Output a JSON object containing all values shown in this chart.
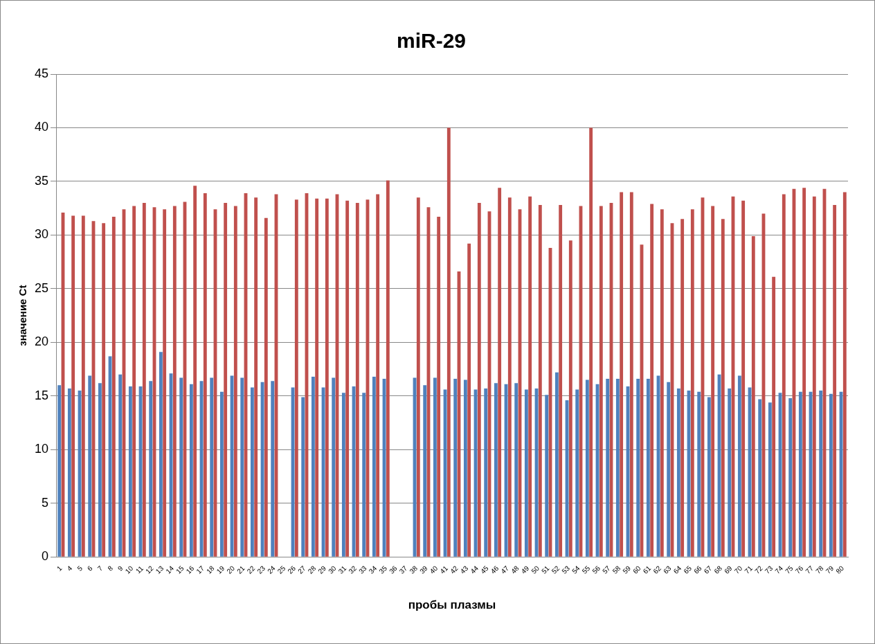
{
  "chart_data": {
    "type": "bar",
    "title": "miR-29",
    "xlabel": "пробы плазмы",
    "ylabel": "значение Ct",
    "categories": [
      "1",
      "4",
      "5",
      "6",
      "7",
      "8",
      "9",
      "10",
      "11",
      "12",
      "13",
      "14",
      "15",
      "16",
      "17",
      "18",
      "19",
      "20",
      "21",
      "22",
      "23",
      "24",
      "25",
      "26",
      "27",
      "28",
      "29",
      "30",
      "31",
      "32",
      "33",
      "34",
      "35",
      "36",
      "37",
      "38",
      "39",
      "40",
      "41",
      "42",
      "43",
      "44",
      "45",
      "46",
      "47",
      "48",
      "49",
      "50",
      "51",
      "52",
      "53",
      "54",
      "55",
      "56",
      "57",
      "58",
      "59",
      "60",
      "61",
      "62",
      "63",
      "64",
      "65",
      "66",
      "67",
      "68",
      "69",
      "70",
      "71",
      "72",
      "73",
      "74",
      "75",
      "76",
      "77",
      "78",
      "79",
      "80"
    ],
    "series": [
      {
        "color": "#4f81bd",
        "values": [
          16.0,
          15.7,
          15.5,
          16.9,
          16.2,
          18.7,
          17.0,
          15.9,
          15.9,
          16.4,
          19.1,
          17.1,
          16.7,
          16.1,
          16.4,
          16.7,
          15.4,
          16.9,
          16.7,
          15.8,
          16.3,
          16.4,
          null,
          15.8,
          14.9,
          16.8,
          15.8,
          16.7,
          15.3,
          15.9,
          15.3,
          16.8,
          16.6,
          null,
          null,
          16.7,
          16.0,
          16.7,
          15.6,
          16.6,
          16.5,
          15.6,
          15.7,
          16.2,
          16.1,
          16.2,
          15.6,
          15.7,
          15.1,
          17.2,
          14.6,
          15.6,
          16.5,
          16.1,
          16.6,
          16.6,
          15.9,
          16.6,
          16.6,
          16.9,
          16.3,
          15.7,
          15.5,
          15.4,
          14.9,
          17.0,
          15.7,
          16.9,
          15.8,
          14.7,
          14.4,
          15.3,
          14.8,
          15.4,
          15.4,
          15.5,
          15.2,
          15.4
        ]
      },
      {
        "color": "#c0504d",
        "values": [
          32.1,
          31.8,
          31.8,
          31.3,
          31.1,
          31.7,
          32.4,
          32.7,
          33.0,
          32.6,
          32.4,
          32.7,
          33.1,
          34.6,
          33.9,
          32.4,
          33.0,
          32.7,
          33.9,
          33.5,
          31.6,
          33.8,
          null,
          33.3,
          33.9,
          33.4,
          33.4,
          33.8,
          33.2,
          33.0,
          33.3,
          33.8,
          35.1,
          null,
          null,
          33.5,
          32.6,
          31.7,
          40,
          26.6,
          29.2,
          33.0,
          32.2,
          34.4,
          33.5,
          32.4,
          33.6,
          32.8,
          28.8,
          32.8,
          29.5,
          32.7,
          40,
          32.7,
          33.0,
          34.0,
          34.0,
          29.1,
          32.9,
          32.4,
          31.1,
          31.5,
          32.4,
          33.5,
          32.7,
          31.5,
          33.6,
          33.2,
          29.9,
          32.0,
          26.1,
          33.8,
          34.3,
          34.4,
          33.6,
          34.3,
          32.8,
          34.0
        ]
      }
    ],
    "ylim": [
      0,
      45
    ],
    "yticks": [
      0,
      5,
      10,
      15,
      20,
      25,
      30,
      35,
      40,
      45
    ],
    "grid": "y",
    "legend": false
  }
}
